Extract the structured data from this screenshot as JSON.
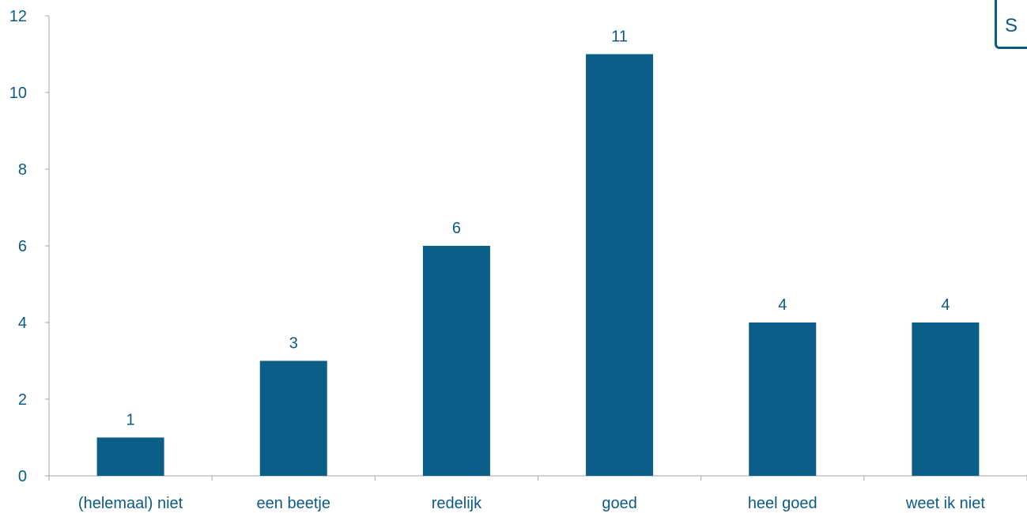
{
  "chart_data": {
    "type": "bar",
    "categories": [
      "(helemaal) niet",
      "een beetje",
      "redelijk",
      "goed",
      "heel goed",
      "weet ik niet"
    ],
    "values": [
      1,
      3,
      6,
      11,
      4,
      4
    ],
    "data_labels": [
      "1",
      "3",
      "6",
      "11",
      "4",
      "4"
    ],
    "yticks": [
      "0",
      "2",
      "4",
      "6",
      "8",
      "10",
      "12"
    ],
    "ylim": [
      0,
      12
    ],
    "title": "",
    "xlabel": "",
    "ylabel": "",
    "grid": false,
    "bar_color": "#0b5e87",
    "text_color": "#0b5a86",
    "axis_color": "#a6a6a6"
  },
  "badge": {
    "text": "S"
  }
}
